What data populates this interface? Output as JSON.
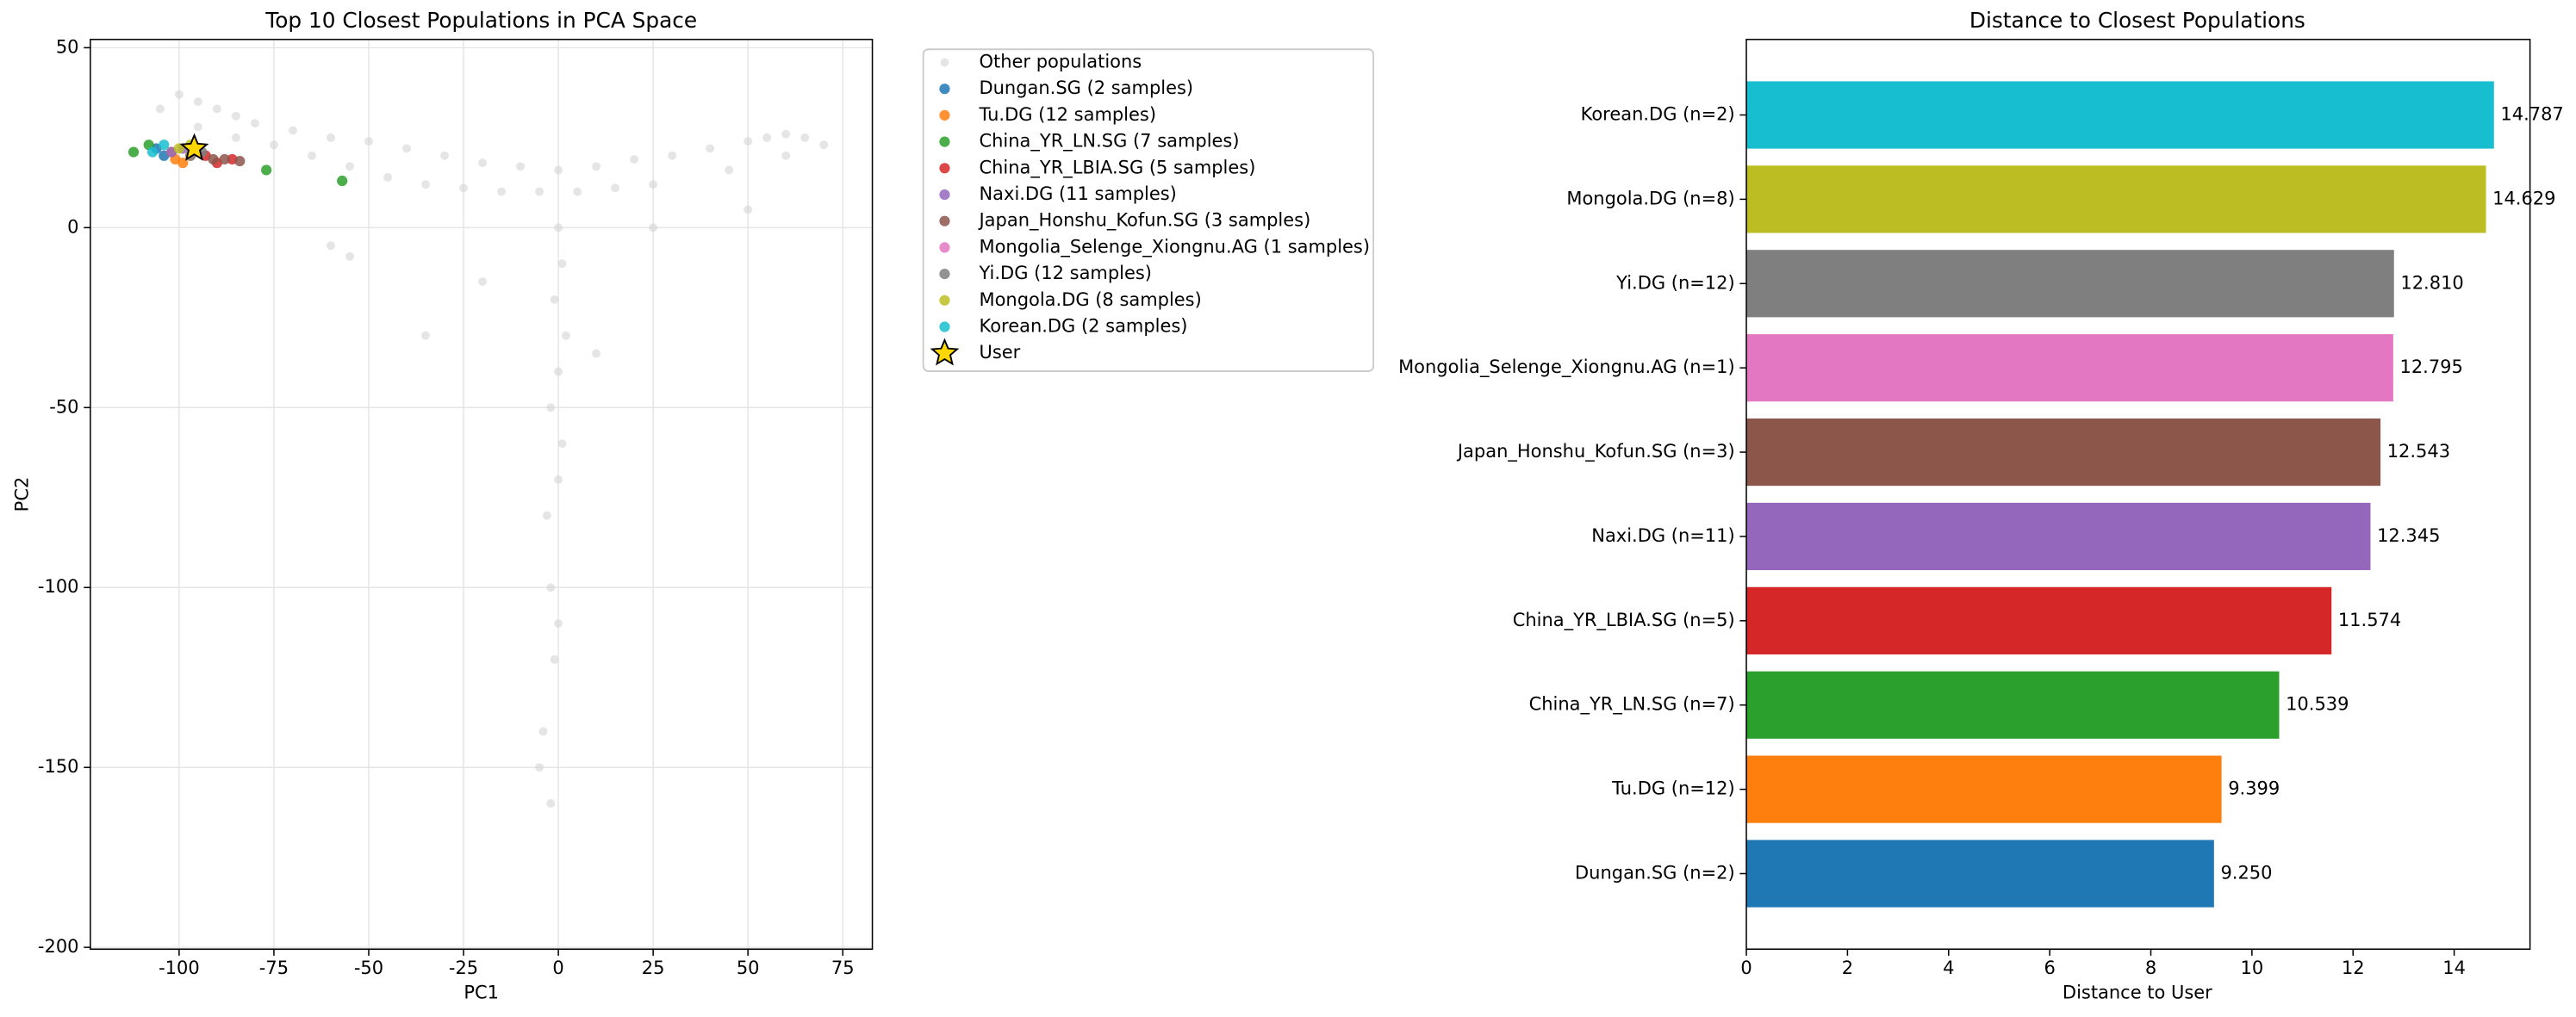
{
  "chart_data": [
    {
      "type": "scatter",
      "title": "Top 10 Closest Populations in PCA Space",
      "xlabel": "PC1",
      "ylabel": "PC2",
      "xlim": [
        -123.4,
        82.8
      ],
      "ylim": [
        -200.5,
        52.3
      ],
      "xticks": [
        -100,
        -75,
        -50,
        -25,
        0,
        25,
        50,
        75
      ],
      "yticks": [
        -200,
        -150,
        -100,
        -50,
        0,
        50
      ],
      "grid": true,
      "series": [
        {
          "name": "Other populations",
          "color": "#d3d3d3",
          "x": [
            -105,
            -100,
            -95,
            -90,
            -85,
            -80,
            -70,
            -60,
            -50,
            -40,
            -30,
            -20,
            -10,
            0,
            10,
            20,
            30,
            40,
            50,
            55,
            60,
            65,
            70,
            -95,
            -85,
            -75,
            -65,
            -55,
            -45,
            -35,
            -25,
            -15,
            -5,
            5,
            15,
            25,
            45,
            60,
            0,
            1,
            -1,
            2,
            0,
            -2,
            1,
            0,
            -3,
            -2,
            0,
            -1,
            -4,
            -5,
            -2,
            -60,
            -55,
            25,
            50,
            -35,
            10,
            -20
          ],
          "y": [
            33,
            37,
            35,
            33,
            31,
            29,
            27,
            25,
            24,
            22,
            20,
            18,
            17,
            16,
            17,
            19,
            20,
            22,
            24,
            25,
            26,
            25,
            23,
            28,
            25,
            23,
            20,
            17,
            14,
            12,
            11,
            10,
            10,
            10,
            11,
            12,
            16,
            20,
            0,
            -10,
            -20,
            -30,
            -40,
            -50,
            -60,
            -70,
            -80,
            -100,
            -110,
            -120,
            -140,
            -150,
            -160,
            -5,
            -8,
            0,
            5,
            -30,
            -35,
            -15
          ]
        },
        {
          "name": "Dungan.SG (2 samples)",
          "color": "#1f77b4",
          "x": [
            -106,
            -104
          ],
          "y": [
            22,
            20
          ]
        },
        {
          "name": "Tu.DG (12 samples)",
          "color": "#ff7f0e",
          "x": [
            -101,
            -99,
            -97,
            -102
          ],
          "y": [
            19,
            18,
            20,
            21
          ]
        },
        {
          "name": "China_YR_LN.SG (7 samples)",
          "color": "#2ca02c",
          "x": [
            -112,
            -108,
            -77,
            -57
          ],
          "y": [
            21,
            23,
            16,
            13
          ]
        },
        {
          "name": "China_YR_LBIA.SG (5 samples)",
          "color": "#d62728",
          "x": [
            -93,
            -90,
            -86
          ],
          "y": [
            20,
            18,
            19
          ]
        },
        {
          "name": "Naxi.DG (11 samples)",
          "color": "#9467bd",
          "x": [
            -102,
            -99
          ],
          "y": [
            21,
            22
          ]
        },
        {
          "name": "Japan_Honshu_Kofun.SG (3 samples)",
          "color": "#8c564b",
          "x": [
            -91,
            -88,
            -84
          ],
          "y": [
            19,
            19,
            18.5
          ]
        },
        {
          "name": "Mongolia_Selenge_Xiongnu.AG (1 samples)",
          "color": "#e377c2",
          "x": [
            -96
          ],
          "y": [
            21
          ]
        },
        {
          "name": "Yi.DG (12 samples)",
          "color": "#7f7f7f",
          "x": [
            -97,
            -94
          ],
          "y": [
            20,
            21
          ]
        },
        {
          "name": "Mongola.DG (8 samples)",
          "color": "#bcbd22",
          "x": [
            -100,
            -97
          ],
          "y": [
            22,
            23
          ]
        },
        {
          "name": "Korean.DG (2 samples)",
          "color": "#17becf",
          "x": [
            -104,
            -107
          ],
          "y": [
            23,
            21
          ]
        },
        {
          "name": "User",
          "color": "#ffd700",
          "marker": "star",
          "x": [
            -96
          ],
          "y": [
            22
          ]
        }
      ]
    },
    {
      "type": "barh",
      "title": "Distance to Closest Populations",
      "xlabel": "Distance to User",
      "xlim": [
        0,
        15.5
      ],
      "xticks": [
        0,
        2,
        4,
        6,
        8,
        10,
        12,
        14
      ],
      "categories": [
        "Dungan.SG (n=2)",
        "Tu.DG (n=12)",
        "China_YR_LN.SG (n=7)",
        "China_YR_LBIA.SG (n=5)",
        "Naxi.DG (n=11)",
        "Japan_Honshu_Kofun.SG (n=3)",
        "Mongolia_Selenge_Xiongnu.AG (n=1)",
        "Yi.DG (n=12)",
        "Mongola.DG (n=8)",
        "Korean.DG (n=2)"
      ],
      "values": [
        9.25,
        9.399,
        10.539,
        11.574,
        12.345,
        12.543,
        12.795,
        12.81,
        14.629,
        14.787
      ],
      "value_labels": [
        "9.250",
        "9.399",
        "10.539",
        "11.574",
        "12.345",
        "12.543",
        "12.795",
        "12.810",
        "14.629",
        "14.787"
      ],
      "colors": [
        "#1f77b4",
        "#ff7f0e",
        "#2ca02c",
        "#d62728",
        "#9467bd",
        "#8c564b",
        "#e377c2",
        "#7f7f7f",
        "#bcbd22",
        "#17becf"
      ]
    }
  ]
}
